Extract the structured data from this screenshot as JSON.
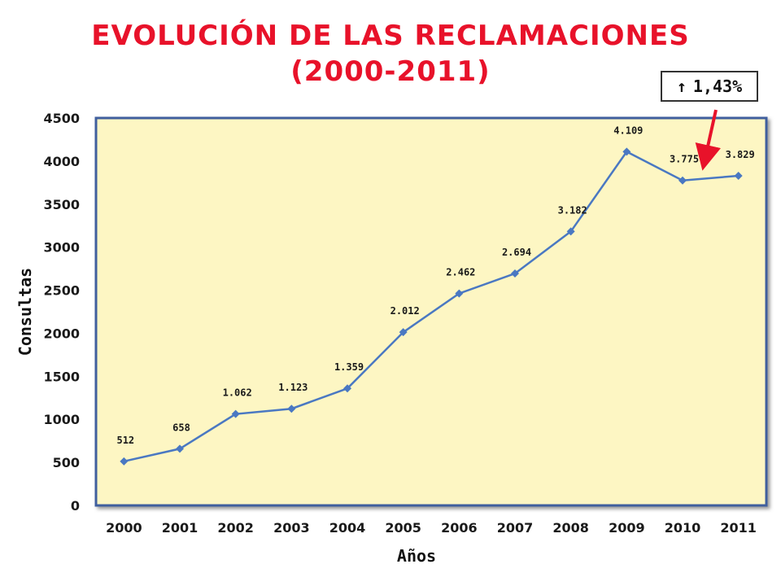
{
  "title": {
    "line1": "EVOLUCIÓN DE LAS RECLAMACIONES",
    "line2": "(2000-2011)"
  },
  "callout": {
    "arrow": "↑",
    "text": "1,43%"
  },
  "colors": {
    "title": "#e8122a",
    "plot_bg": "#fdf6c3",
    "line": "#4a78c2",
    "callout_arrow": "#e8122a"
  },
  "chart_data": {
    "type": "line",
    "categories": [
      "2000",
      "2001",
      "2002",
      "2003",
      "2004",
      "2005",
      "2006",
      "2007",
      "2008",
      "2009",
      "2010",
      "2011"
    ],
    "series": [
      {
        "values": [
          512,
          658,
          1062,
          1123,
          1359,
          2012,
          2462,
          2694,
          3182,
          4109,
          3775,
          3829
        ],
        "labels": [
          "512",
          "658",
          "1.062",
          "1.123",
          "1.359",
          "2.012",
          "2.462",
          "2.694",
          "3.182",
          "4.109",
          "3.775",
          "3.829"
        ]
      }
    ],
    "xlabel": "Años",
    "ylabel": "Consultas",
    "ylim": [
      0,
      4500
    ],
    "yticks": [
      "0",
      "500",
      "1000",
      "1500",
      "2000",
      "2500",
      "3000",
      "3500",
      "4000",
      "4500"
    ],
    "grid": false,
    "legend": false
  }
}
